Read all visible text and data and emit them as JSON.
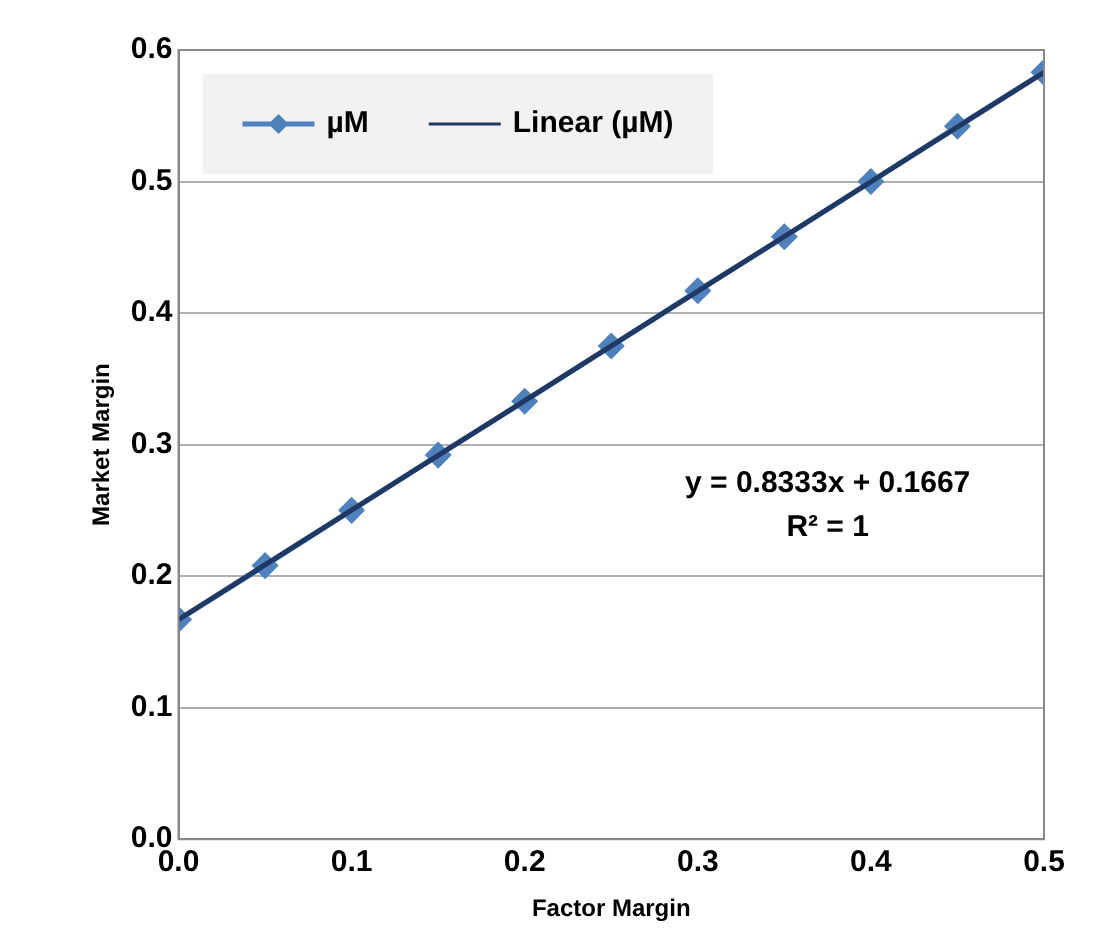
{
  "chart_data": {
    "type": "line",
    "xlabel": "Factor Margin",
    "ylabel": "Market Margin",
    "x": [
      0,
      0.05,
      0.1,
      0.15,
      0.2,
      0.25,
      0.3,
      0.35,
      0.4,
      0.45,
      0.5
    ],
    "series": [
      {
        "name": "µM",
        "color": "#4f81bd",
        "marker": "diamond",
        "values": [
          0.167,
          0.208,
          0.25,
          0.292,
          0.333,
          0.375,
          0.417,
          0.458,
          0.5,
          0.542,
          0.583
        ]
      },
      {
        "name": "Linear (µM)",
        "type": "line",
        "color": "#1f3864",
        "marker": "none",
        "x": [
          0,
          0.5
        ],
        "values": [
          0.167,
          0.583
        ]
      }
    ],
    "xlim": [
      0,
      0.5
    ],
    "xticks": [
      {
        "value": 0,
        "label": "0.0"
      },
      {
        "value": 0.1,
        "label": "0.1"
      },
      {
        "value": 0.2,
        "label": "0.2"
      },
      {
        "value": 0.3,
        "label": "0.3"
      },
      {
        "value": 0.4,
        "label": "0.4"
      },
      {
        "value": 0.5,
        "label": "0.5"
      }
    ],
    "ylim": [
      0,
      0.6
    ],
    "yticks": [
      {
        "value": 0,
        "label": "0.0"
      },
      {
        "value": 0.1,
        "label": "0.1"
      },
      {
        "value": 0.2,
        "label": "0.2"
      },
      {
        "value": 0.3,
        "label": "0.3"
      },
      {
        "value": 0.4,
        "label": "0.4"
      },
      {
        "value": 0.5,
        "label": "0.5"
      },
      {
        "value": 0.6,
        "label": "0.6"
      }
    ],
    "grid": "y",
    "legend": "top left",
    "annotations": [
      "y = 0.8333x + 0.1667",
      "R² = 1"
    ]
  }
}
